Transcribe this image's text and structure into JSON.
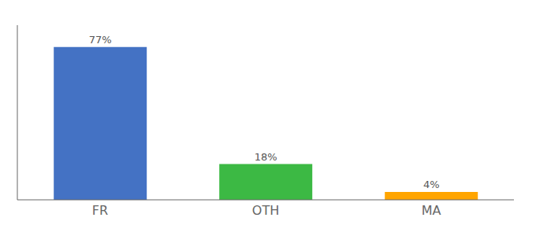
{
  "chart_data": {
    "type": "bar",
    "categories": [
      "FR",
      "OTH",
      "MA"
    ],
    "values": [
      77,
      18,
      4
    ],
    "value_labels": [
      "77%",
      "18%",
      "4%"
    ],
    "colors": [
      "#4472c4",
      "#3cb944",
      "#ffa500"
    ],
    "ylim": [
      0,
      88
    ],
    "data_labels": true,
    "tick_labels": "x",
    "grid": false
  }
}
